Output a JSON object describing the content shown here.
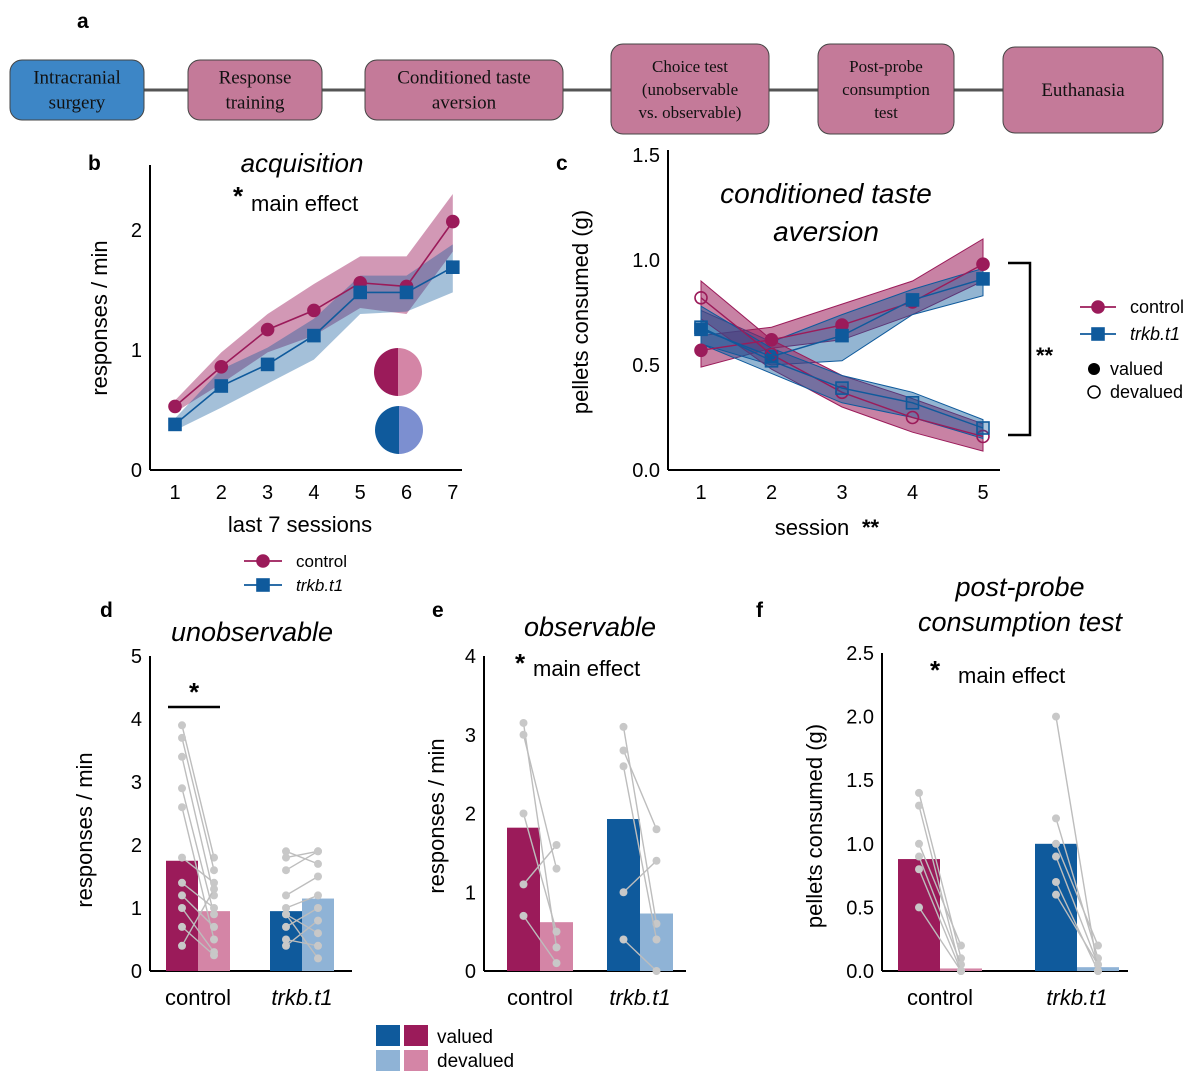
{
  "panel_letters": [
    "a",
    "b",
    "c",
    "d",
    "e",
    "f"
  ],
  "colors": {
    "control": "#9b1b5a",
    "control_light": "#d485a6",
    "trkb": "#0f5a9c",
    "trkb_light": "#8fb3d6",
    "surgery_box": "#3d86c6",
    "step_box": "#c47a99",
    "points": "#c8c8c8"
  },
  "timeline": {
    "steps": [
      [
        "Intracranial",
        "surgery"
      ],
      [
        "Response",
        "training"
      ],
      [
        "Conditioned taste",
        "aversion"
      ],
      [
        "Choice test",
        "(unobservable",
        "vs. observable)"
      ],
      [
        "Post-probe",
        "consumption",
        "test"
      ],
      [
        "Euthanasia"
      ]
    ]
  },
  "chart_data": [
    {
      "panel": "b",
      "type": "line",
      "title": "acquisition",
      "annotation": "main effect",
      "annotation_star": "*",
      "xlabel": "last 7 sessions",
      "ylabel": "responses / min",
      "x": [
        1,
        2,
        3,
        4,
        5,
        6,
        7
      ],
      "x_ticks": [
        "1",
        "2",
        "3",
        "4",
        "5",
        "6",
        "7"
      ],
      "y_ticks": [
        "0",
        "1",
        "2"
      ],
      "ylim": [
        0,
        2.5
      ],
      "series": [
        {
          "name": "control",
          "values": [
            0.53,
            0.86,
            1.17,
            1.33,
            1.56,
            1.53,
            2.07
          ],
          "lower": [
            0.48,
            0.72,
            0.98,
            1.12,
            1.35,
            1.3,
            1.82
          ],
          "upper": [
            0.58,
            0.98,
            1.3,
            1.55,
            1.78,
            1.78,
            2.3
          ]
        },
        {
          "name": "trkb.t1",
          "values": [
            0.38,
            0.7,
            0.88,
            1.12,
            1.48,
            1.48,
            1.69
          ],
          "lower": [
            0.33,
            0.52,
            0.72,
            0.92,
            1.3,
            1.32,
            1.48
          ],
          "upper": [
            0.43,
            0.84,
            1.02,
            1.26,
            1.62,
            1.62,
            1.88
          ]
        }
      ],
      "legend": [
        "control",
        "trkb.t1"
      ]
    },
    {
      "panel": "c",
      "type": "line",
      "title": [
        "conditioned taste",
        "aversion"
      ],
      "xlabel": "session",
      "xlabel_sig": "**",
      "ylabel": "pellets consumed (g)",
      "x": [
        1,
        2,
        3,
        4,
        5
      ],
      "x_ticks": [
        "1",
        "2",
        "3",
        "4",
        "5"
      ],
      "y_ticks": [
        "0.0",
        "0.5",
        "1.0",
        "1.5"
      ],
      "ylim": [
        0,
        1.5
      ],
      "bracket_label": "**",
      "series": [
        {
          "name": "control",
          "state": "valued",
          "values": [
            0.57,
            0.62,
            0.69,
            0.8,
            0.98
          ],
          "lower": [
            0.49,
            0.58,
            0.62,
            0.74,
            0.9
          ],
          "upper": [
            0.64,
            0.68,
            0.79,
            0.9,
            1.1
          ]
        },
        {
          "name": "trkb.t1",
          "state": "valued",
          "values": [
            0.67,
            0.54,
            0.64,
            0.81,
            0.91
          ],
          "lower": [
            0.6,
            0.5,
            0.52,
            0.74,
            0.83
          ],
          "upper": [
            0.76,
            0.61,
            0.74,
            0.86,
            0.96
          ]
        },
        {
          "name": "control",
          "state": "devalued",
          "values": [
            0.82,
            0.55,
            0.37,
            0.25,
            0.16
          ],
          "lower": [
            0.72,
            0.48,
            0.3,
            0.18,
            0.09
          ],
          "upper": [
            0.9,
            0.62,
            0.45,
            0.34,
            0.22
          ]
        },
        {
          "name": "trkb.t1",
          "state": "devalued",
          "values": [
            0.68,
            0.52,
            0.39,
            0.32,
            0.2
          ],
          "lower": [
            0.6,
            0.46,
            0.32,
            0.25,
            0.15
          ],
          "upper": [
            0.78,
            0.58,
            0.45,
            0.37,
            0.24
          ]
        }
      ],
      "legend": [
        "control",
        "trkb.t1",
        "valued",
        "devalued"
      ]
    },
    {
      "panel": "d",
      "type": "bar",
      "title": "unobservable",
      "ylabel": "responses / min",
      "categories": [
        "control",
        "trkb.t1"
      ],
      "y_ticks": [
        "0",
        "1",
        "2",
        "3",
        "4",
        "5"
      ],
      "ylim": [
        0,
        5
      ],
      "sig_label": "*",
      "series": [
        {
          "name": "valued",
          "values": [
            1.75,
            0.95
          ]
        },
        {
          "name": "devalued",
          "values": [
            0.95,
            1.15
          ]
        }
      ],
      "pairs": [
        [
          [
            3.9,
            1.8
          ],
          [
            3.7,
            1.6
          ],
          [
            3.4,
            1.2
          ],
          [
            2.9,
            0.9
          ],
          [
            2.6,
            0.5
          ],
          [
            1.8,
            1.4
          ],
          [
            1.4,
            1.0
          ],
          [
            1.2,
            0.7
          ],
          [
            1.0,
            0.3
          ],
          [
            0.7,
            0.25
          ],
          [
            0.4,
            1.3
          ]
        ],
        [
          [
            1.9,
            1.7
          ],
          [
            1.8,
            1.9
          ],
          [
            1.6,
            1.9
          ],
          [
            1.2,
            1.5
          ],
          [
            1.0,
            1.2
          ],
          [
            0.9,
            0.6
          ],
          [
            0.7,
            1.0
          ],
          [
            0.5,
            0.4
          ],
          [
            0.4,
            0.8
          ],
          [
            0.9,
            0.2
          ]
        ]
      ]
    },
    {
      "panel": "e",
      "type": "bar",
      "title": "observable",
      "annotation": "main effect",
      "annotation_star": "*",
      "ylabel": "responses / min",
      "categories": [
        "control",
        "trkb.t1"
      ],
      "y_ticks": [
        "0",
        "1",
        "2",
        "3",
        "4"
      ],
      "ylim": [
        0,
        4
      ],
      "series": [
        {
          "name": "valued",
          "values": [
            1.82,
            1.93
          ]
        },
        {
          "name": "devalued",
          "values": [
            0.62,
            0.73
          ]
        }
      ],
      "pairs": [
        [
          [
            3.15,
            0.3
          ],
          [
            3.0,
            1.3
          ],
          [
            2.0,
            0.5
          ],
          [
            1.1,
            1.6
          ],
          [
            0.7,
            0.1
          ]
        ],
        [
          [
            3.1,
            0.6
          ],
          [
            2.8,
            1.8
          ],
          [
            2.6,
            0.4
          ],
          [
            1.0,
            1.4
          ],
          [
            0.4,
            0.0
          ]
        ]
      ]
    },
    {
      "panel": "f",
      "type": "bar",
      "title": [
        "post-probe",
        "consumption test"
      ],
      "annotation": "main effect",
      "annotation_star": "*",
      "ylabel": "pellets consumed (g)",
      "categories": [
        "control",
        "trkb.t1"
      ],
      "y_ticks": [
        "0.0",
        "0.5",
        "1.0",
        "1.5",
        "2.0",
        "2.5"
      ],
      "ylim": [
        0,
        2.5
      ],
      "series": [
        {
          "name": "valued",
          "values": [
            0.88,
            1.0
          ]
        },
        {
          "name": "devalued",
          "values": [
            0.02,
            0.03
          ]
        }
      ],
      "pairs": [
        [
          [
            1.4,
            0.1
          ],
          [
            1.3,
            0.0
          ],
          [
            1.0,
            0.2
          ],
          [
            0.9,
            0.05
          ],
          [
            0.8,
            0.0
          ],
          [
            0.5,
            0.0
          ]
        ],
        [
          [
            2.0,
            0.0
          ],
          [
            1.2,
            0.1
          ],
          [
            1.0,
            0.2
          ],
          [
            0.9,
            0.05
          ],
          [
            0.7,
            0.0
          ],
          [
            0.6,
            0.05
          ]
        ]
      ]
    }
  ],
  "bar_legend": [
    "valued",
    "devalued"
  ]
}
